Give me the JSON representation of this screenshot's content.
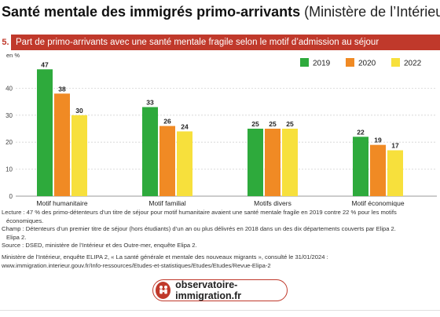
{
  "header": {
    "title_bold": "Santé mentale des immigrés primo-arrivants",
    "title_source": "(Ministère de l’Intérieur)"
  },
  "banner": {
    "number": "5.",
    "text": "Part de primo-arrivants avec une santé mentale fragile selon le motif d’admission au séjour"
  },
  "chart_data": {
    "type": "bar",
    "y_unit": "en %",
    "ylim": [
      0,
      50
    ],
    "yticks": [
      0,
      10,
      20,
      30,
      40
    ],
    "grid": true,
    "legend_position": "top-right",
    "categories": [
      "Motif humanitaire",
      "Motif familial",
      "Motifs divers",
      "Motif économique"
    ],
    "series": [
      {
        "name": "2019",
        "color": "#2eaa3c",
        "values": [
          47,
          33,
          25,
          22
        ]
      },
      {
        "name": "2020",
        "color": "#f08a24",
        "values": [
          38,
          26,
          25,
          19
        ]
      },
      {
        "name": "2022",
        "color": "#f7e03c",
        "values": [
          30,
          24,
          25,
          17
        ]
      }
    ]
  },
  "notes": {
    "lecture": "Lecture : 47 % des primo-détenteurs d’un titre de séjour pour motif humanitaire avaient une santé mentale fragile en 2019 contre 22 % pour les motifs",
    "lecture_cont": "économiques.",
    "champ": "Champ : Détenteurs d’un premier titre de séjour (hors étudiants) d’un an ou plus délivrés en 2018 dans un des dix départements couverts par Elipa 2.",
    "source": "Source : DSED, ministère de l’Intérieur et des Outre-mer, enquête Elipa 2."
  },
  "citation": {
    "line1": "Ministère de l’Intérieur, enquête ELIPA 2, « La santé générale et mentale des nouveaux migrants », consulté le 31/01/2024 :",
    "line2": "www.immigration.interieur.gouv.fr/Info-ressources/Etudes-et-statistiques/Etudes/Etudes/Revue-Elipa-2"
  },
  "footer": {
    "site": "observatoire-immigration.fr",
    "logo_icon": "people-family-icon",
    "accent": "#c0392b"
  }
}
